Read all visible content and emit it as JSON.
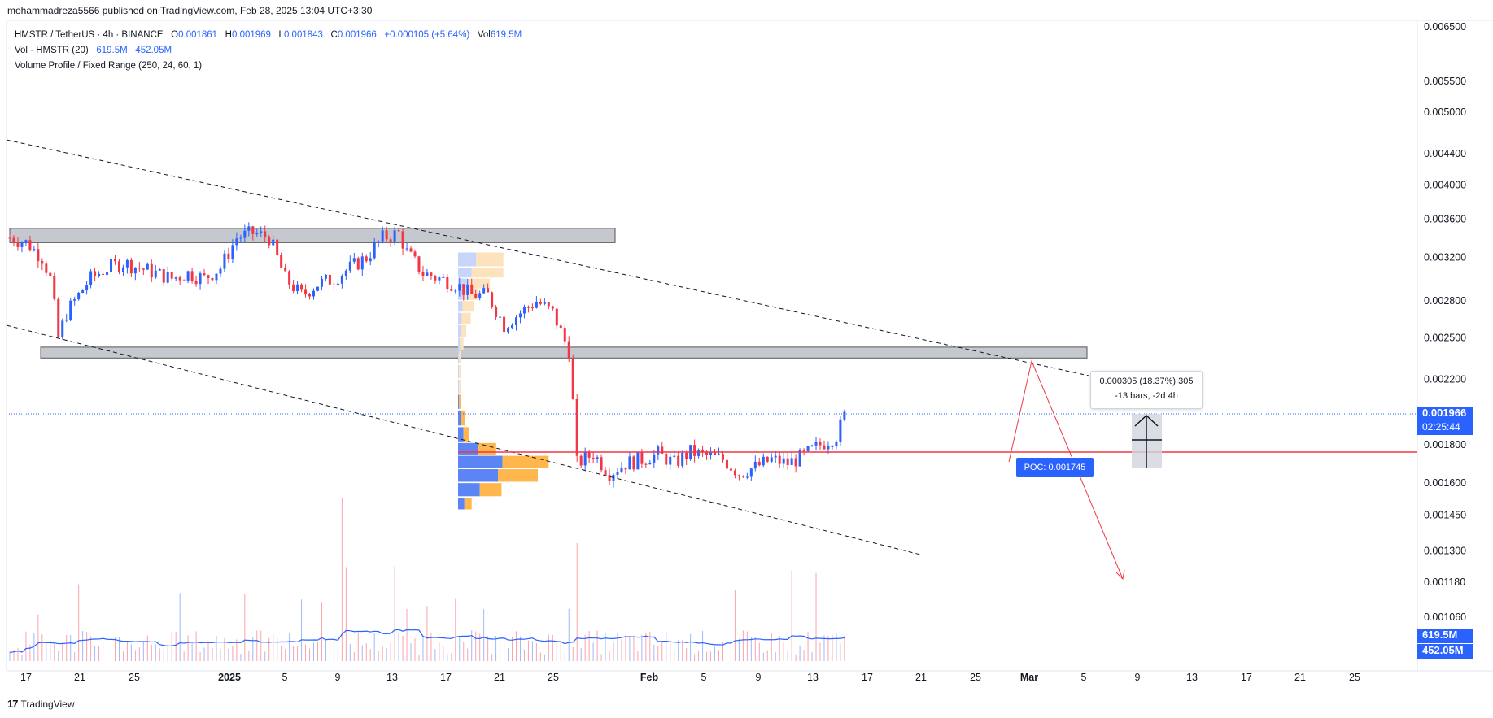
{
  "header": {
    "published": "mohammadreza5566 published on TradingView.com, Feb 28, 2025 13:04 UTC+3:30"
  },
  "legend": {
    "symbol": "HMSTR / TetherUS · 4h · BINANCE",
    "o_label": "O",
    "o": "0.001861",
    "h_label": "H",
    "h": "0.001969",
    "l_label": "L",
    "l": "0.001843",
    "c_label": "C",
    "c": "0.001966",
    "change": "+0.000105 (+5.64%)",
    "vol_label": "Vol",
    "vol": "619.5M",
    "vol_indicator": "Vol · HMSTR (20)",
    "vol_val1": "619.5M",
    "vol_val2": "452.05M",
    "vp_indicator": "Volume Profile / Fixed Range (250, 24, 60, 1)"
  },
  "measure": {
    "line1": "0.000305 (18.37%) 305",
    "line2": "-13 bars, -2d 4h"
  },
  "poc_label": "POC: 0.001745",
  "price_tags": {
    "last_price": "0.001966",
    "countdown": "02:25:44",
    "vol_last": "619.5M",
    "vol_ma": "452.05M"
  },
  "footer": {
    "logo": "17",
    "brand": "TradingView"
  },
  "colors": {
    "up": "#2962ff",
    "down": "#f23645",
    "profile_blue": "#5b84f5",
    "profile_orange": "#ffb74d",
    "zone": "#b2b5be"
  },
  "chart_data": {
    "type": "candlestick",
    "yscale": "log",
    "ylim": [
      0.00101,
      0.0066
    ],
    "y_ticks": [
      "0.006500",
      "0.005500",
      "0.005000",
      "0.004400",
      "0.004000",
      "0.003600",
      "0.003200",
      "0.002800",
      "0.002500",
      "0.002200",
      "0.001966",
      "0.001800",
      "0.001600",
      "0.001450",
      "0.001300",
      "0.001180",
      "0.001060"
    ],
    "x_ticks": [
      "17",
      "21",
      "25",
      "2025",
      "5",
      "9",
      "13",
      "17",
      "21",
      "25",
      "Feb",
      "5",
      "9",
      "13",
      "17",
      "21",
      "25",
      "Mar",
      "5",
      "9",
      "13",
      "17",
      "21",
      "25"
    ],
    "price_path": [
      [
        0,
        0.0034
      ],
      [
        4,
        0.00335
      ],
      [
        8,
        0.0032
      ],
      [
        10,
        0.003
      ],
      [
        12,
        0.0025
      ],
      [
        14,
        0.0027
      ],
      [
        16,
        0.0028
      ],
      [
        20,
        0.003
      ],
      [
        24,
        0.0031
      ],
      [
        28,
        0.00315
      ],
      [
        32,
        0.0031
      ],
      [
        36,
        0.00305
      ],
      [
        40,
        0.003
      ],
      [
        44,
        0.00305
      ],
      [
        48,
        0.003
      ],
      [
        52,
        0.0031
      ],
      [
        56,
        0.0034
      ],
      [
        60,
        0.00345
      ],
      [
        64,
        0.0034
      ],
      [
        68,
        0.003
      ],
      [
        72,
        0.00285
      ],
      [
        76,
        0.00295
      ],
      [
        80,
        0.003
      ],
      [
        84,
        0.0031
      ],
      [
        88,
        0.0032
      ],
      [
        92,
        0.0034
      ],
      [
        96,
        0.00345
      ],
      [
        98,
        0.00325
      ],
      [
        102,
        0.00305
      ],
      [
        106,
        0.003
      ],
      [
        110,
        0.00295
      ],
      [
        114,
        0.00285
      ],
      [
        118,
        0.00285
      ],
      [
        122,
        0.0026
      ],
      [
        126,
        0.0027
      ],
      [
        130,
        0.0028
      ],
      [
        134,
        0.0027
      ],
      [
        138,
        0.0024
      ],
      [
        140,
        0.0017
      ],
      [
        144,
        0.00175
      ],
      [
        148,
        0.00165
      ],
      [
        152,
        0.0017
      ],
      [
        156,
        0.00172
      ],
      [
        160,
        0.00175
      ],
      [
        164,
        0.0017
      ],
      [
        168,
        0.00176
      ],
      [
        172,
        0.00174
      ],
      [
        176,
        0.00172
      ],
      [
        180,
        0.00165
      ],
      [
        184,
        0.00168
      ],
      [
        188,
        0.00172
      ],
      [
        192,
        0.0017
      ],
      [
        196,
        0.00174
      ],
      [
        200,
        0.0018
      ],
      [
        204,
        0.00185
      ],
      [
        206,
        0.001966
      ]
    ],
    "volume_profile": {
      "poc": 0.001745,
      "rows": [
        {
          "price": 0.00325,
          "up": 0.2,
          "down": 0.3
        },
        {
          "price": 0.0031,
          "up": 0.15,
          "down": 0.35
        },
        {
          "price": 0.003,
          "up": 0.1,
          "down": 0.25
        },
        {
          "price": 0.0029,
          "up": 0.08,
          "down": 0.15
        },
        {
          "price": 0.0028,
          "up": 0.05,
          "down": 0.12
        },
        {
          "price": 0.0027,
          "up": 0.04,
          "down": 0.1
        },
        {
          "price": 0.0026,
          "up": 0.03,
          "down": 0.06
        },
        {
          "price": 0.0025,
          "up": 0.02,
          "down": 0.04
        },
        {
          "price": 0.0024,
          "up": 0.01,
          "down": 0.02
        },
        {
          "price": 0.0023,
          "up": 0.01,
          "down": 0.02
        },
        {
          "price": 0.0022,
          "up": 0.01,
          "down": 0.02
        },
        {
          "price": 0.0021,
          "up": 0.01,
          "down": 0.02
        },
        {
          "price": 0.002,
          "up": 0.03,
          "down": 0.05
        },
        {
          "price": 0.0019,
          "up": 0.06,
          "down": 0.06
        },
        {
          "price": 0.00181,
          "up": 0.22,
          "down": 0.2
        },
        {
          "price": 0.00174,
          "up": 0.49,
          "down": 0.51
        },
        {
          "price": 0.00167,
          "up": 0.44,
          "down": 0.44
        },
        {
          "price": 0.0016,
          "up": 0.24,
          "down": 0.24
        },
        {
          "price": 0.00153,
          "up": 0.07,
          "down": 0.08
        }
      ]
    },
    "zones": [
      {
        "from": 0.00335,
        "to": 0.0035
      },
      {
        "from": 0.00235,
        "to": 0.00243
      }
    ]
  }
}
